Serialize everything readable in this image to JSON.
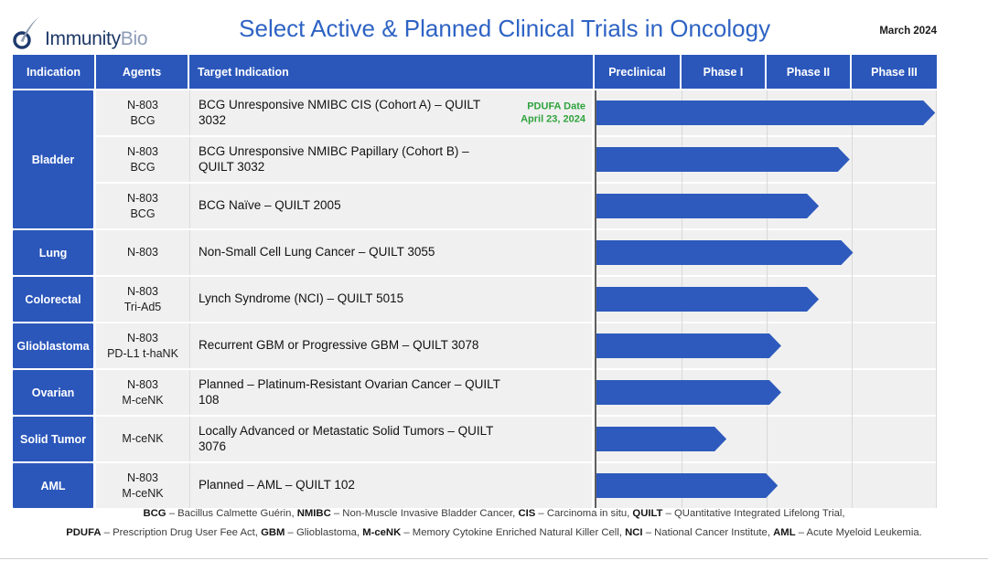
{
  "header": {
    "logo": {
      "text_primary": "Immunity",
      "text_secondary": "Bio"
    },
    "title": "Select Active & Planned Clinical Trials in Oncology",
    "date": "March 2024"
  },
  "table": {
    "columns": [
      "Indication",
      "Agents",
      "Target Indication"
    ],
    "phases": [
      "Preclinical",
      "Phase I",
      "Phase II",
      "Phase III"
    ],
    "groups": [
      {
        "indication": "Bladder",
        "trials": [
          {
            "agents": [
              "N-803",
              "BCG"
            ],
            "target": "BCG Unresponsive NMIBC CIS (Cohort A) – QUILT 3032",
            "note": [
              "PDUFA Date",
              "April 23, 2024"
            ],
            "progress_pct": 99
          },
          {
            "agents": [
              "N-803",
              "BCG"
            ],
            "target": "BCG Unresponsive NMIBC Papillary (Cohort B) – QUILT 3032",
            "progress_pct": 74
          },
          {
            "agents": [
              "N-803",
              "BCG"
            ],
            "target": "BCG Naïve – QUILT 2005",
            "progress_pct": 65
          }
        ]
      },
      {
        "indication": "Lung",
        "trials": [
          {
            "agents": [
              "N-803"
            ],
            "target": "Non-Small Cell Lung Cancer – QUILT 3055",
            "progress_pct": 75
          }
        ]
      },
      {
        "indication": "Colorectal",
        "trials": [
          {
            "agents": [
              "N-803",
              "Tri-Ad5"
            ],
            "target": "Lynch Syndrome (NCI) – QUILT 5015",
            "progress_pct": 65
          }
        ]
      },
      {
        "indication": "Glioblastoma",
        "trials": [
          {
            "agents": [
              "N-803",
              "PD-L1 t-haNK"
            ],
            "target": "Recurrent GBM or Progressive GBM – QUILT 3078",
            "progress_pct": 54
          }
        ]
      },
      {
        "indication": "Ovarian",
        "trials": [
          {
            "agents": [
              "N-803",
              "M-ceNK"
            ],
            "target": "Planned – Platinum-Resistant Ovarian Cancer – QUILT 108",
            "progress_pct": 54
          }
        ]
      },
      {
        "indication": "Solid Tumor",
        "trials": [
          {
            "agents": [
              "M-ceNK"
            ],
            "target": "Locally Advanced or Metastatic Solid Tumors – QUILT 3076",
            "progress_pct": 38
          }
        ]
      },
      {
        "indication": "AML",
        "trials": [
          {
            "agents": [
              "N-803",
              "M-ceNK"
            ],
            "target": "Planned – AML – QUILT 102",
            "progress_pct": 53
          }
        ]
      }
    ]
  },
  "chart_data": {
    "type": "bar",
    "orientation": "horizontal",
    "title": "Select Active & Planned Clinical Trials in Oncology",
    "x_axis": {
      "categories": [
        "Preclinical",
        "Phase I",
        "Phase II",
        "Phase III"
      ],
      "range_pct": [
        0,
        100
      ]
    },
    "grid": true,
    "bars": [
      {
        "label": "BCG Unresponsive NMIBC CIS (Cohort A) – QUILT 3032",
        "indication": "Bladder",
        "agents": "N-803 + BCG",
        "progress_pct": 99,
        "phase_reached": "Phase III complete"
      },
      {
        "label": "BCG Unresponsive NMIBC Papillary (Cohort B) – QUILT 3032",
        "indication": "Bladder",
        "agents": "N-803 + BCG",
        "progress_pct": 74,
        "phase_reached": "Phase II complete"
      },
      {
        "label": "BCG Naïve – QUILT 2005",
        "indication": "Bladder",
        "agents": "N-803 + BCG",
        "progress_pct": 65,
        "phase_reached": "Phase II in progress"
      },
      {
        "label": "Non-Small Cell Lung Cancer – QUILT 3055",
        "indication": "Lung",
        "agents": "N-803",
        "progress_pct": 75,
        "phase_reached": "Phase II complete"
      },
      {
        "label": "Lynch Syndrome (NCI) – QUILT 5015",
        "indication": "Colorectal",
        "agents": "N-803 + Tri-Ad5",
        "progress_pct": 65,
        "phase_reached": "Phase II in progress"
      },
      {
        "label": "Recurrent GBM or Progressive GBM – QUILT 3078",
        "indication": "Glioblastoma",
        "agents": "N-803 + PD-L1 t-haNK",
        "progress_pct": 54,
        "phase_reached": "Phase II early"
      },
      {
        "label": "Planned – Platinum-Resistant Ovarian Cancer – QUILT 108",
        "indication": "Ovarian",
        "agents": "N-803 + M-ceNK",
        "progress_pct": 54,
        "phase_reached": "Phase II early"
      },
      {
        "label": "Locally Advanced or Metastatic Solid Tumors – QUILT 3076",
        "indication": "Solid Tumor",
        "agents": "M-ceNK",
        "progress_pct": 38,
        "phase_reached": "Phase I mid"
      },
      {
        "label": "Planned – AML – QUILT 102",
        "indication": "AML",
        "agents": "N-803 + M-ceNK",
        "progress_pct": 53,
        "phase_reached": "Phase II early"
      }
    ]
  },
  "footnotes": [
    [
      [
        "BCG",
        " – Bacillus Calmette Guérin, "
      ],
      [
        "NMIBC",
        " – Non-Muscle Invasive Bladder Cancer, "
      ],
      [
        "CIS",
        " – Carcinoma in situ, "
      ],
      [
        "QUILT",
        " – QUantitative Integrated Lifelong Trial,"
      ]
    ],
    [
      [
        "PDUFA",
        " – Prescription Drug User Fee Act, "
      ],
      [
        "GBM",
        " – Glioblastoma, "
      ],
      [
        "M-ceNK",
        " – Memory Cytokine Enriched Natural Killer Cell, "
      ],
      [
        "NCI",
        " – National Cancer Institute, "
      ],
      [
        "AML",
        " – Acute Myeloid Leukemia."
      ]
    ]
  ],
  "colors": {
    "brand_blue": "#2b57bb",
    "title_blue": "#2e63c4",
    "bar_blue": "#2d5abc",
    "pdufa_green": "#2fa33c",
    "row_gray": "#f0f0f1",
    "grid_gray": "#d9d9d9",
    "axis_gray": "#5f5f5f",
    "logo_navy": "#1e3866",
    "logo_bio_gray": "#8d9cb6"
  }
}
